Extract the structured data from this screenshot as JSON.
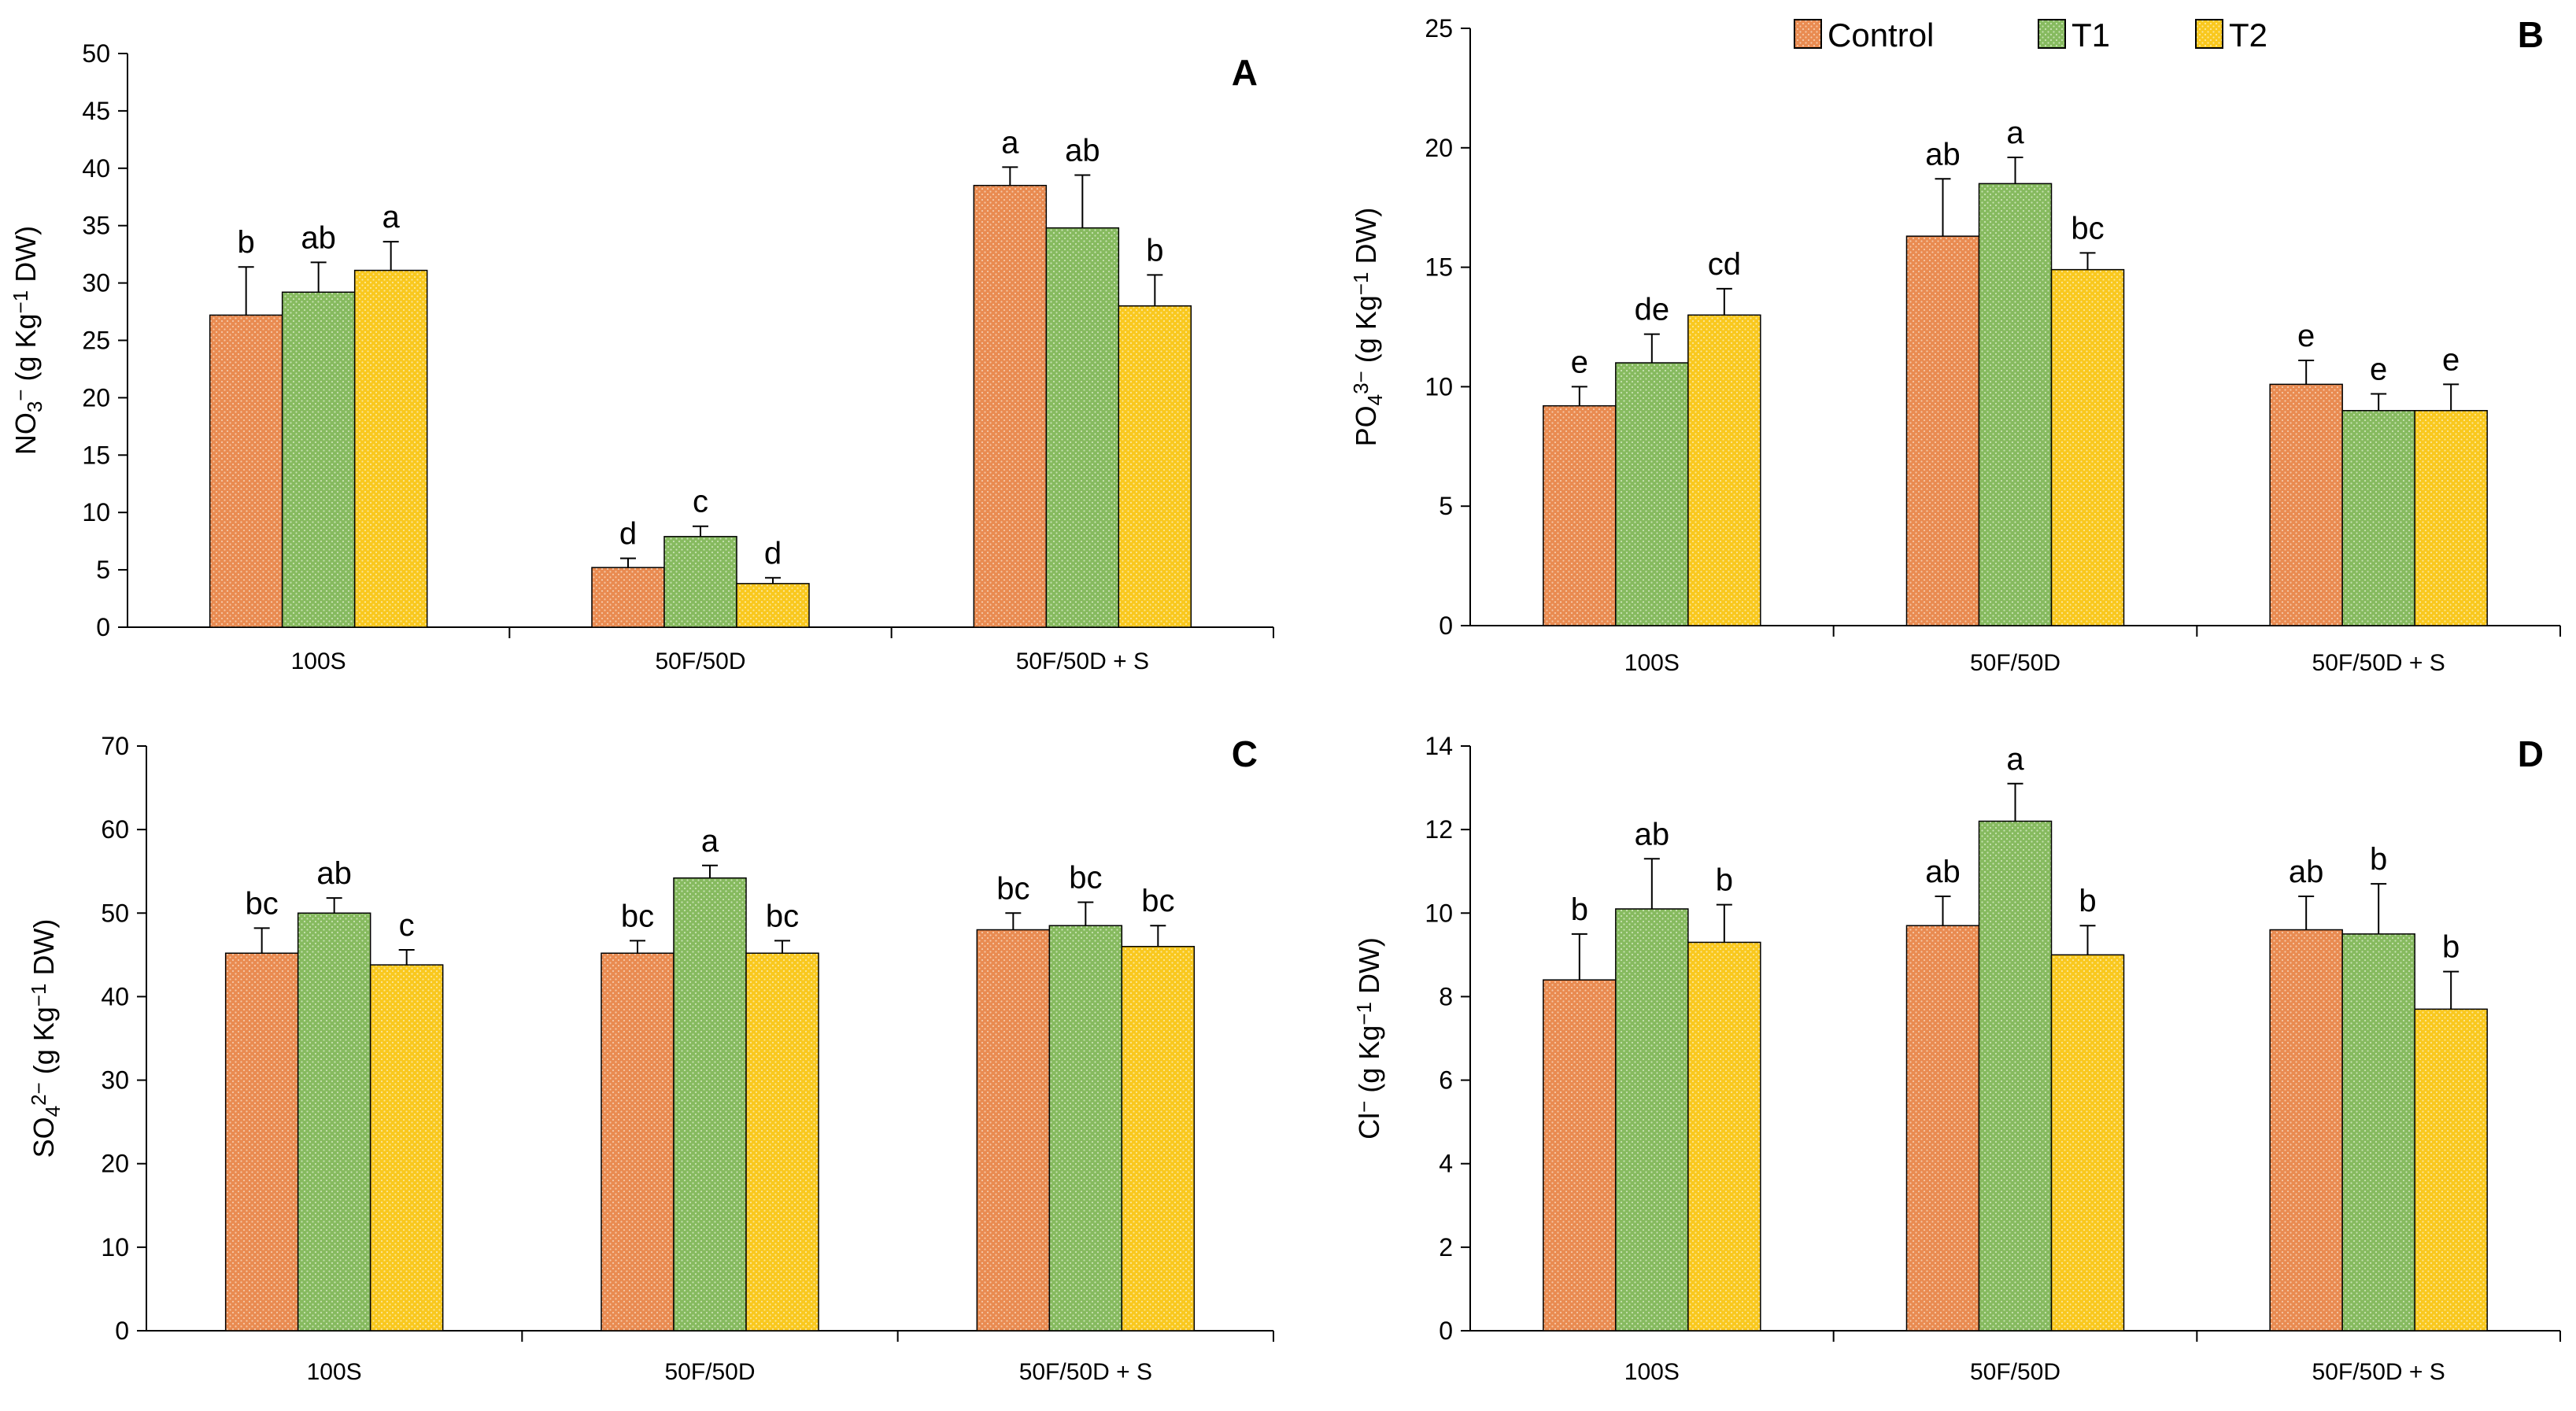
{
  "legend": [
    {
      "name": "Control",
      "color": "#E98B51"
    },
    {
      "name": "T1",
      "color": "#86BA5F"
    },
    {
      "name": "T2",
      "color": "#F9C81E"
    }
  ],
  "chart_data": [
    {
      "type": "bar",
      "panel": "A",
      "ylabel_main": "NO",
      "ylabel_sub": "3",
      "ylabel_sup": "−",
      "ylabel_unit": " (g Kg",
      "ylabel_unit_sup": "−1",
      "ylabel_tail": " DW)",
      "ylim": [
        0,
        50
      ],
      "yticks": [
        0,
        5,
        10,
        15,
        20,
        25,
        30,
        35,
        40,
        45,
        50
      ],
      "categories": [
        "100S",
        "50F/50D",
        "50F/50D + S"
      ],
      "series": [
        {
          "name": "Control",
          "values": [
            27.2,
            5.2,
            38.5
          ],
          "errors": [
            4.2,
            0.8,
            1.6
          ],
          "letters": [
            "b",
            "d",
            "a"
          ]
        },
        {
          "name": "T1",
          "values": [
            29.2,
            7.9,
            34.8
          ],
          "errors": [
            2.6,
            0.9,
            4.6
          ],
          "letters": [
            "ab",
            "c",
            "ab"
          ]
        },
        {
          "name": "T2",
          "values": [
            31.1,
            3.8,
            28.0
          ],
          "errors": [
            2.5,
            0.5,
            2.7
          ],
          "letters": [
            "a",
            "d",
            "b"
          ]
        }
      ]
    },
    {
      "type": "bar",
      "panel": "B",
      "ylabel_main": "PO",
      "ylabel_sub": "4",
      "ylabel_sup": "3−",
      "ylabel_unit": " (g Kg",
      "ylabel_unit_sup": "−1",
      "ylabel_tail": " DW)",
      "ylim": [
        0,
        25
      ],
      "yticks": [
        0,
        5,
        10,
        15,
        20,
        25
      ],
      "categories": [
        "100S",
        "50F/50D",
        "50F/50D + S"
      ],
      "series": [
        {
          "name": "Control",
          "values": [
            9.2,
            16.3,
            10.1
          ],
          "errors": [
            0.8,
            2.4,
            1.0
          ],
          "letters": [
            "e",
            "ab",
            "e"
          ]
        },
        {
          "name": "T1",
          "values": [
            11.0,
            18.5,
            9.0
          ],
          "errors": [
            1.2,
            1.1,
            0.7
          ],
          "letters": [
            "de",
            "a",
            "e"
          ]
        },
        {
          "name": "T2",
          "values": [
            13.0,
            14.9,
            9.0
          ],
          "errors": [
            1.1,
            0.7,
            1.1
          ],
          "letters": [
            "cd",
            "bc",
            "e"
          ]
        }
      ]
    },
    {
      "type": "bar",
      "panel": "C",
      "ylabel_main": "SO",
      "ylabel_sub": "4",
      "ylabel_sup": "2−",
      "ylabel_unit": " (g Kg",
      "ylabel_unit_sup": "−1",
      "ylabel_tail": " DW)",
      "ylim": [
        0,
        70
      ],
      "yticks": [
        0,
        10,
        20,
        30,
        40,
        50,
        60,
        70
      ],
      "categories": [
        "100S",
        "50F/50D",
        "50F/50D + S"
      ],
      "series": [
        {
          "name": "Control",
          "values": [
            45.2,
            45.2,
            48.0
          ],
          "errors": [
            3.0,
            1.5,
            2.0
          ],
          "letters": [
            "bc",
            "bc",
            "bc"
          ]
        },
        {
          "name": "T1",
          "values": [
            50.0,
            54.2,
            48.5
          ],
          "errors": [
            1.8,
            1.5,
            2.8
          ],
          "letters": [
            "ab",
            "a",
            "bc"
          ]
        },
        {
          "name": "T2",
          "values": [
            43.8,
            45.2,
            46.0
          ],
          "errors": [
            1.8,
            1.5,
            2.5
          ],
          "letters": [
            "c",
            "bc",
            "bc"
          ]
        }
      ]
    },
    {
      "type": "bar",
      "panel": "D",
      "ylabel_main": "Cl",
      "ylabel_sub": "",
      "ylabel_sup": "−",
      "ylabel_unit": " (g Kg",
      "ylabel_unit_sup": "−1",
      "ylabel_tail": " DW)",
      "ylim": [
        0,
        14
      ],
      "yticks": [
        0,
        2,
        4,
        6,
        8,
        10,
        12,
        14
      ],
      "categories": [
        "100S",
        "50F/50D",
        "50F/50D + S"
      ],
      "series": [
        {
          "name": "Control",
          "values": [
            8.4,
            9.7,
            9.6
          ],
          "errors": [
            1.1,
            0.7,
            0.8
          ],
          "letters": [
            "b",
            "ab",
            "ab"
          ]
        },
        {
          "name": "T1",
          "values": [
            10.1,
            12.2,
            9.5
          ],
          "errors": [
            1.2,
            0.9,
            1.2
          ],
          "letters": [
            "ab",
            "a",
            "b"
          ]
        },
        {
          "name": "T2",
          "values": [
            9.3,
            9.0,
            7.7
          ],
          "errors": [
            0.9,
            0.7,
            0.9
          ],
          "letters": [
            "b",
            "b",
            "b"
          ]
        }
      ]
    }
  ]
}
